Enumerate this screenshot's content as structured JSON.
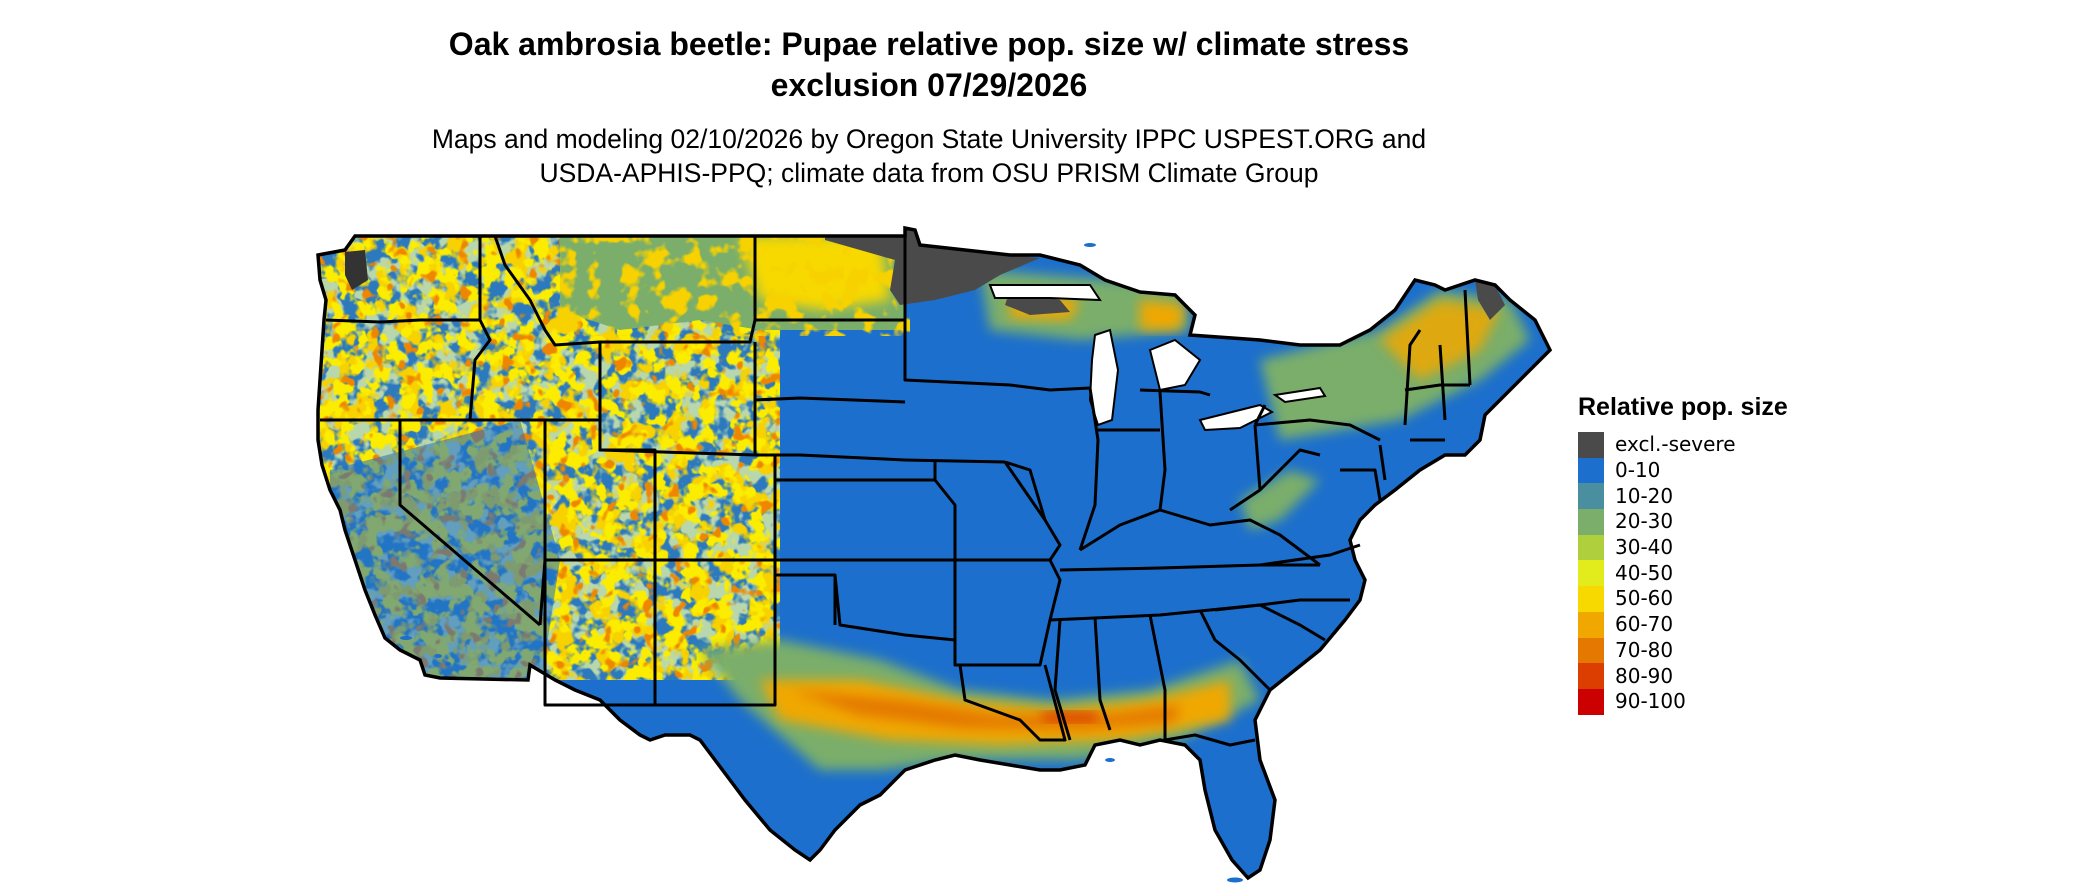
{
  "map": {
    "title_line1": "Oak ambrosia beetle: Pupae relative pop. size w/ climate stress",
    "title_line2": "exclusion 07/29/2026",
    "subtitle_line1": "Maps and modeling 02/10/2026 by Oregon State University IPPC USPEST.ORG and",
    "subtitle_line2": "USDA-APHIS-PPQ; climate data from OSU PRISM Climate Group"
  },
  "legend": {
    "title": "Relative pop. size",
    "items": [
      {
        "label": "excl.-severe",
        "color": "#4a4a4a"
      },
      {
        "label": "0-10",
        "color": "#1c6fcc"
      },
      {
        "label": "10-20",
        "color": "#4a8fa0"
      },
      {
        "label": "20-30",
        "color": "#7aae6a"
      },
      {
        "label": "30-40",
        "color": "#b0cf3c"
      },
      {
        "label": "40-50",
        "color": "#e2ec1c"
      },
      {
        "label": "50-60",
        "color": "#f7d900"
      },
      {
        "label": "60-70",
        "color": "#f0a800"
      },
      {
        "label": "70-80",
        "color": "#e47800"
      },
      {
        "label": "80-90",
        "color": "#dc3d00"
      },
      {
        "label": "90-100",
        "color": "#cc0000"
      }
    ]
  }
}
